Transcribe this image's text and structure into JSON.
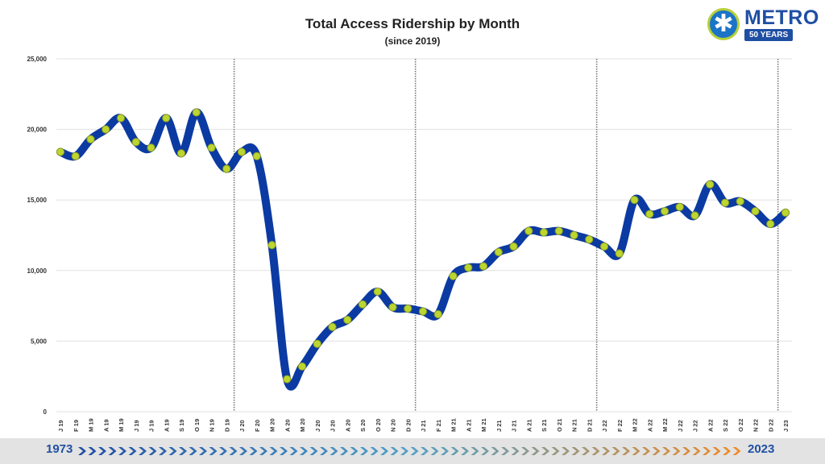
{
  "header": {
    "title": "Total Access Ridership by Month",
    "subtitle": "(since 2019)"
  },
  "logo": {
    "word": "METRO",
    "years": "50 YEARS"
  },
  "footer": {
    "start_year": "1973",
    "end_year": "2023"
  },
  "colors": {
    "line": "#0b3aa3",
    "marker_fill": "#bcd630",
    "marker_stroke": "#8a9a20",
    "grid": "#e0e0e0",
    "separator": "#777777",
    "brand_blue": "#1f4fa3",
    "arrow_start": "#1f4fa3",
    "arrow_end": "#f08a24"
  },
  "chart_data": {
    "type": "line",
    "title": "Total Access Ridership by Month",
    "subtitle": "(since 2019)",
    "xlabel": "",
    "ylabel": "",
    "ylim": [
      0,
      25000
    ],
    "yticks": [
      0,
      5000,
      10000,
      15000,
      20000,
      25000
    ],
    "ytick_labels": [
      "0",
      "5,000",
      "10,000",
      "15,000",
      "20,000",
      "25,000"
    ],
    "grid": true,
    "legend": "none",
    "year_separators_after": [
      "D 19",
      "D 20",
      "D 21",
      "D 22"
    ],
    "categories": [
      "J 19",
      "F 19",
      "M 19",
      "A 19",
      "M 19",
      "J 19",
      "J 19",
      "A 19",
      "S 19",
      "O 19",
      "N 19",
      "D 19",
      "J 20",
      "F 20",
      "M 20",
      "A 20",
      "M 20",
      "J 20",
      "J 20",
      "A 20",
      "S 20",
      "O 20",
      "N 20",
      "D 20",
      "J 21",
      "F 21",
      "M 21",
      "A 21",
      "M 21",
      "J 21",
      "J 21",
      "A 21",
      "S 21",
      "O 21",
      "N 21",
      "D 21",
      "J 22",
      "F 22",
      "M 22",
      "A 22",
      "M 22",
      "J 22",
      "J 22",
      "A 22",
      "S 22",
      "O 22",
      "N 22",
      "D 22",
      "J 23"
    ],
    "series": [
      {
        "values": [
          18400,
          18100,
          19300,
          20000,
          20800,
          19100,
          18700,
          20800,
          18300,
          21200,
          18700,
          17200,
          18400,
          18100,
          11800,
          2300,
          3200,
          4800,
          6000,
          6500,
          7600,
          8500,
          7400,
          7300,
          7100,
          6900,
          9600,
          10200,
          10300,
          11300,
          11700,
          12800,
          12700,
          12800,
          12500,
          12200,
          11700,
          11200,
          15000,
          14000,
          14200,
          14500,
          13900,
          16100,
          14800,
          14900,
          14200,
          13300,
          14100
        ]
      }
    ]
  }
}
